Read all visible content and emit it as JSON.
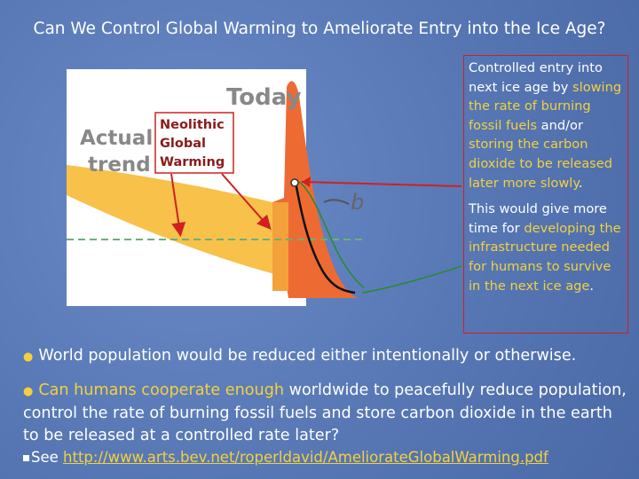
{
  "header": {
    "title": "Can We Control Global Warming to Ameliorate Entry into the Ice Age?"
  },
  "diagram": {
    "today": "Today",
    "actual": "Actual",
    "trend": "trend",
    "b": "b",
    "box": [
      "Neolithic",
      "Global",
      "Warming"
    ]
  },
  "note": {
    "p1": [
      "Controlled entry into next ice age by ",
      "slowing the rate of burning fossil fuels",
      " and/or ",
      "storing the carbon dioxide to be released later more slowly",
      "."
    ],
    "p2": [
      "This would give more time for ",
      "developing the infrastructure needed for humans to survive in the next ice age",
      "."
    ]
  },
  "bullets": [
    "World population would be reduced either intentionally or otherwise.",
    [
      "Can humans cooperate enough",
      " worldwide to peacefully reduce population, control the rate of burning fossil fuels and store carbon dioxide in the earth to be released at a controlled rate later?"
    ],
    [
      "See ",
      "http://www.arts.bev.net/roperldavid/AmeliorateGlobalWarming.pdf"
    ]
  ]
}
